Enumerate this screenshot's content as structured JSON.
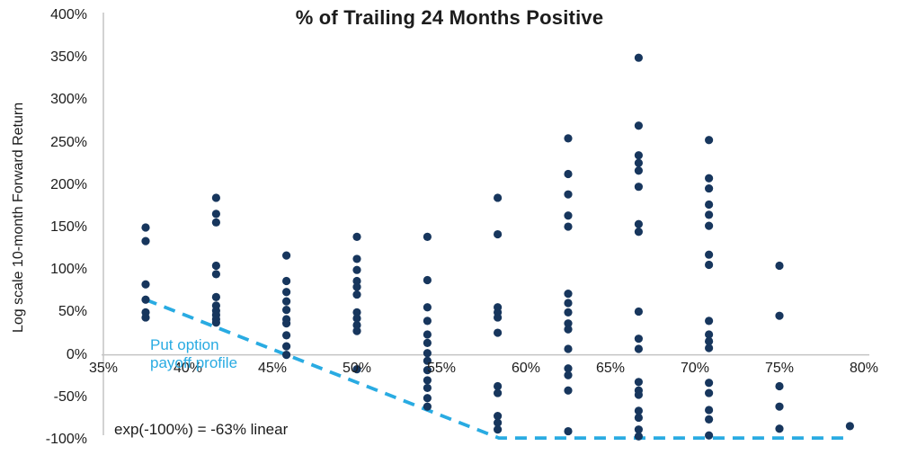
{
  "chart_data": {
    "type": "scatter",
    "title": "% of Trailing 24 Months Positive",
    "xlabel": "",
    "ylabel": "Log scale 10-month Forward Return",
    "xlim": [
      35,
      80
    ],
    "ylim": [
      -100,
      400
    ],
    "grid": "zero-line-only",
    "legend": "none",
    "point_color": "#17365d",
    "axis_color": "#c4c4c4",
    "y_axis": {
      "ticks": [
        {
          "v": 400,
          "label": "400%"
        },
        {
          "v": 350,
          "label": "350%"
        },
        {
          "v": 300,
          "label": "300%"
        },
        {
          "v": 250,
          "label": "250%"
        },
        {
          "v": 200,
          "label": "200%"
        },
        {
          "v": 150,
          "label": "150%"
        },
        {
          "v": 100,
          "label": "100%"
        },
        {
          "v": 50,
          "label": "50%"
        },
        {
          "v": 0,
          "label": "0%"
        },
        {
          "v": -50,
          "label": "-50%"
        },
        {
          "v": -100,
          "label": "-100%"
        }
      ]
    },
    "x_axis": {
      "ticks": [
        {
          "v": 35,
          "label": "35%"
        },
        {
          "v": 40,
          "label": "40%"
        },
        {
          "v": 45,
          "label": "45%"
        },
        {
          "v": 50,
          "label": "50%"
        },
        {
          "v": 55,
          "label": "55%"
        },
        {
          "v": 60,
          "label": "60%"
        },
        {
          "v": 65,
          "label": "65%"
        },
        {
          "v": 70,
          "label": "70%"
        },
        {
          "v": 75,
          "label": "75%"
        },
        {
          "v": 80,
          "label": "80%"
        }
      ]
    },
    "points": [
      {
        "x": 37.5,
        "ys": [
          150,
          134,
          83,
          65,
          50,
          44
        ]
      },
      {
        "x": 41.67,
        "ys": [
          185,
          166,
          156,
          105,
          95,
          68,
          58,
          52,
          47,
          42,
          38
        ]
      },
      {
        "x": 45.83,
        "ys": [
          117,
          87,
          74,
          63,
          53,
          42,
          37,
          23,
          10,
          0
        ]
      },
      {
        "x": 50,
        "ys": [
          139,
          113,
          100,
          87,
          80,
          71,
          50,
          43,
          35,
          28,
          -17
        ]
      },
      {
        "x": 54.17,
        "ys": [
          139,
          88,
          56,
          40,
          24,
          14,
          2,
          -7,
          -18,
          -30,
          -39,
          -51,
          -61
        ]
      },
      {
        "x": 58.33,
        "ys": [
          185,
          142,
          56,
          50,
          44,
          26,
          -37,
          -45,
          -72,
          -80,
          -88
        ]
      },
      {
        "x": 62.5,
        "ys": [
          255,
          213,
          189,
          164,
          151,
          72,
          61,
          50,
          37,
          30,
          7,
          -16,
          -24,
          -42,
          -90
        ]
      },
      {
        "x": 66.67,
        "ys": [
          350,
          270,
          235,
          226,
          217,
          198,
          154,
          145,
          51,
          19,
          7,
          -32,
          -42,
          -47,
          -66,
          -74,
          -88,
          -96
        ]
      },
      {
        "x": 70.83,
        "ys": [
          253,
          208,
          196,
          177,
          165,
          152,
          118,
          106,
          40,
          24,
          16,
          8,
          -33,
          -45,
          -65,
          -76,
          -95
        ]
      },
      {
        "x": 75,
        "ys": [
          105,
          46,
          -37,
          -61,
          -87
        ]
      },
      {
        "x": 79.17,
        "ys": [
          -84
        ]
      }
    ],
    "put_line": {
      "label": "Put option\npayoff profile",
      "color": "#29abe2",
      "points": [
        [
          37.5,
          65
        ],
        [
          58.4,
          -98
        ],
        [
          79.2,
          -98
        ]
      ]
    },
    "annotation": "exp(-100%) = -63% linear"
  }
}
